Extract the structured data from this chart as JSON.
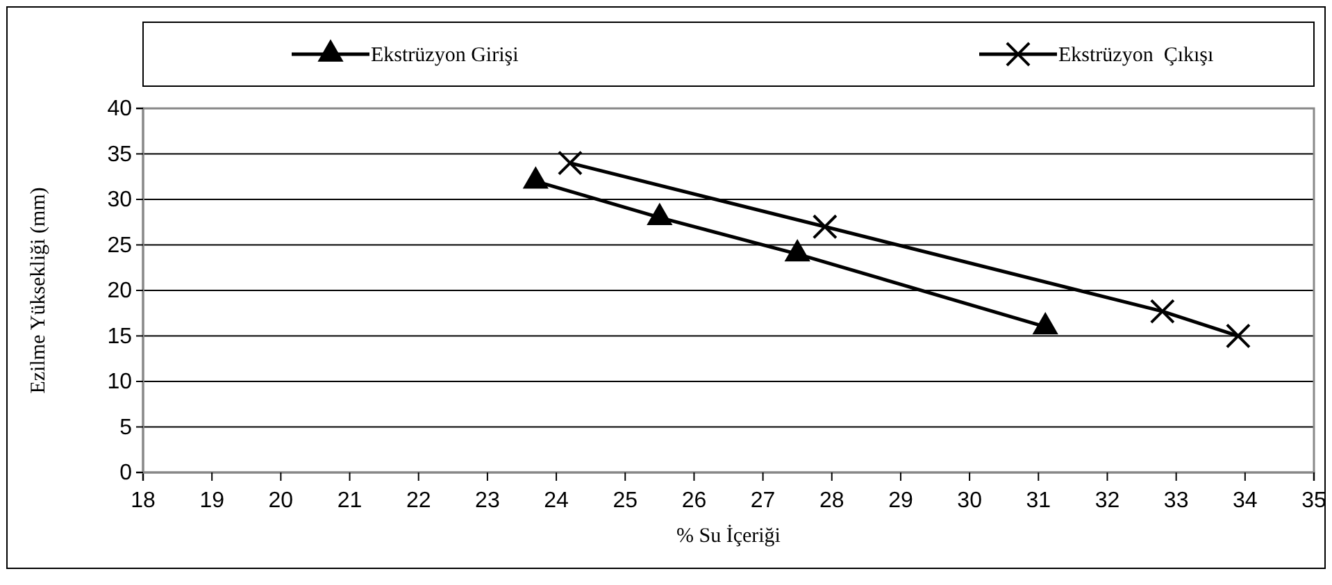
{
  "chart_data": {
    "type": "line",
    "xlabel": "% Su İçeriği",
    "ylabel": "Ezilme Yüksekliği (mm)",
    "xlim": [
      18,
      35
    ],
    "xticks": [
      18,
      19,
      20,
      21,
      22,
      23,
      24,
      25,
      26,
      27,
      28,
      29,
      30,
      31,
      32,
      33,
      34,
      35
    ],
    "ylim": [
      0,
      40
    ],
    "yticks": [
      0,
      5,
      10,
      15,
      20,
      25,
      30,
      35,
      40
    ],
    "grid": "y",
    "legend": "top",
    "series": [
      {
        "name": "Ekstrüzyon Girişi",
        "color": "#000000",
        "marker": "triangle",
        "x": [
          23.7,
          25.5,
          27.5,
          31.1
        ],
        "values": [
          32,
          28,
          24,
          16
        ]
      },
      {
        "name": "Ekstrüzyon  Çıkışı",
        "color": "#000000",
        "marker": "cross",
        "x": [
          24.2,
          27.9,
          32.8,
          33.9
        ],
        "values": [
          34,
          27,
          17.7,
          15
        ]
      }
    ]
  }
}
